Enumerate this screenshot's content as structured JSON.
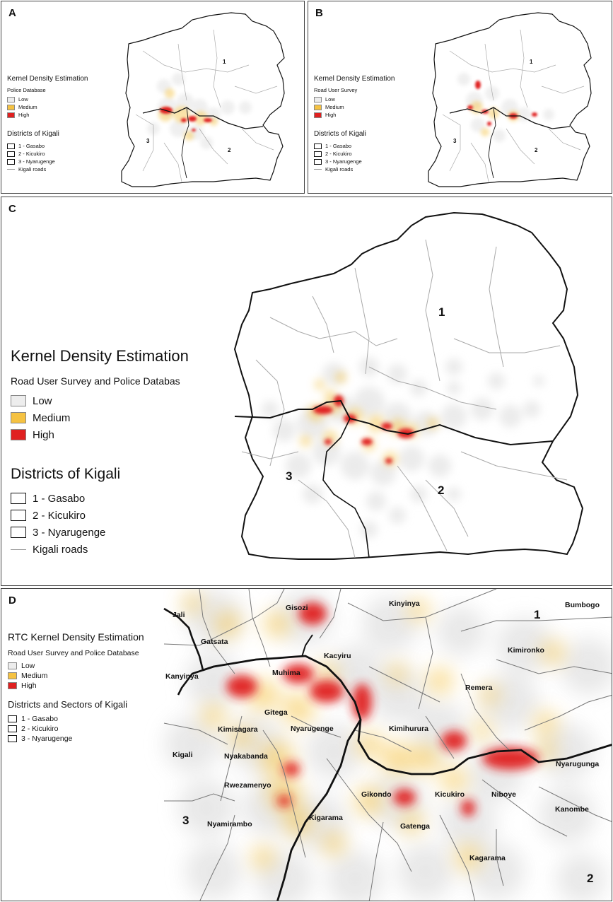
{
  "panels": {
    "a": {
      "label": "A",
      "legend_title": "Kernel Density Estimation",
      "legend_subtitle": "Police Database",
      "density": [
        "Low",
        "Medium",
        "High"
      ],
      "districts_title": "Districts of Kigali",
      "districts": [
        "1 - Gasabo",
        "2 - Kicukiro",
        "3 - Nyarugenge"
      ],
      "roads": "Kigali roads",
      "map_numbers": [
        "1",
        "2",
        "3"
      ]
    },
    "b": {
      "label": "B",
      "legend_title": "Kernel Density Estimation",
      "legend_subtitle": "Road User Survey",
      "density": [
        "Low",
        "Medium",
        "High"
      ],
      "districts_title": "Districts of Kigali",
      "districts": [
        "1 - Gasabo",
        "2 - Kicukiro",
        "3 - Nyarugenge"
      ],
      "roads": "Kigali roads",
      "map_numbers": [
        "1",
        "2",
        "3"
      ]
    },
    "c": {
      "label": "C",
      "legend_title": "Kernel Density Estimation",
      "legend_subtitle": "Road User Survey and Police Databas",
      "density": [
        "Low",
        "Medium",
        "High"
      ],
      "districts_title": "Districts of Kigali",
      "districts": [
        "1 - Gasabo",
        "2 - Kicukiro",
        "3 - Nyarugenge"
      ],
      "roads": "Kigali roads",
      "map_numbers": [
        "1",
        "2",
        "3"
      ]
    },
    "d": {
      "label": "D",
      "legend_title": "RTC Kernel Density Estimation",
      "legend_subtitle": "Road User Survey and Police Database",
      "density": [
        "Low",
        "Medium",
        "High"
      ],
      "districts_title": "Districts and Sectors of Kigali",
      "districts": [
        "1 - Gasabo",
        "2 - Kicukiro",
        "3 - Nyarugenge"
      ],
      "map_numbers": [
        "1",
        "2",
        "3"
      ],
      "sectors": [
        "Jali",
        "Gisozi",
        "Kinyinya",
        "Bumbogo",
        "Gatsata",
        "Kacyiru",
        "Kimironko",
        "Muhima",
        "Kanyinya",
        "Remera",
        "Gitega",
        "Kimisagara",
        "Nyarugenge",
        "Kimihurura",
        "Kigali",
        "Nyakabanda",
        "Nyarugunga",
        "Rwezamenyo",
        "Gikondo",
        "Kicukiro",
        "Niboye",
        "Kanombe",
        "Nyamirambo",
        "Kigarama",
        "Gatenga",
        "Kagarama"
      ]
    }
  },
  "colors": {
    "low": "#ededed",
    "medium": "#f5c242",
    "high": "#e02020",
    "border": "#111111",
    "road": "#999999"
  }
}
